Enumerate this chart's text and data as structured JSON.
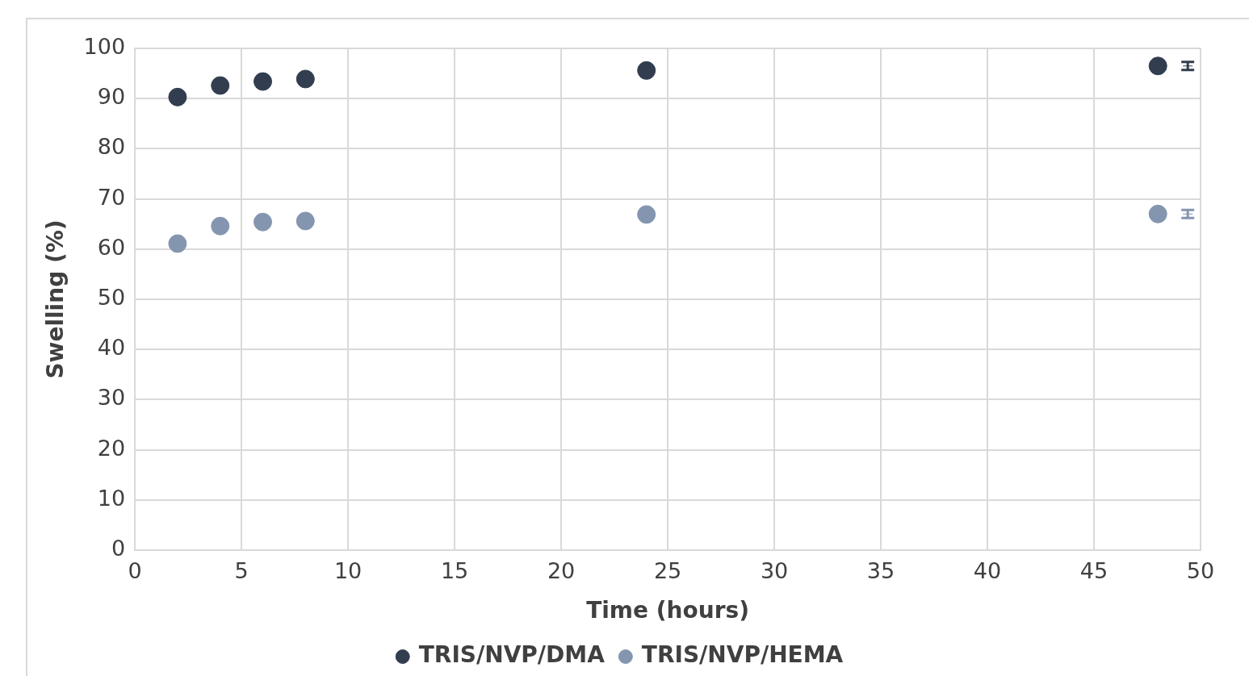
{
  "chart_data": {
    "type": "scatter",
    "xlabel": "Time (hours)",
    "ylabel": "Swelling (%)",
    "xlim": [
      0,
      50
    ],
    "xticks": [
      0,
      5,
      10,
      15,
      20,
      25,
      30,
      35,
      40,
      45,
      50
    ],
    "ylim": [
      0,
      100
    ],
    "yticks": [
      0,
      10,
      20,
      30,
      40,
      50,
      60,
      70,
      80,
      90,
      100
    ],
    "grid": true,
    "legend": "bottom",
    "marker": "circle",
    "series": [
      {
        "name": "TRIS/NVP/DMA",
        "color": "#323e50",
        "x": [
          2,
          4,
          6,
          8,
          24,
          48
        ],
        "values": [
          90.3,
          92.6,
          93.4,
          93.9,
          95.6,
          96.5
        ]
      },
      {
        "name": "TRIS/NVP/HEMA",
        "color": "#8496af",
        "x": [
          2,
          4,
          6,
          8,
          24,
          48
        ],
        "values": [
          61.1,
          64.6,
          65.4,
          65.6,
          66.9,
          67.0
        ]
      },
      {
        "color": "#323e50",
        "marker": "cross",
        "x": [
          49.4
        ],
        "values": [
          96.5
        ],
        "errors": [
          0.8
        ]
      },
      {
        "color": "#8496af",
        "marker": "cross",
        "x": [
          49.4
        ],
        "values": [
          67.0
        ],
        "errors": [
          0.8
        ]
      }
    ]
  }
}
